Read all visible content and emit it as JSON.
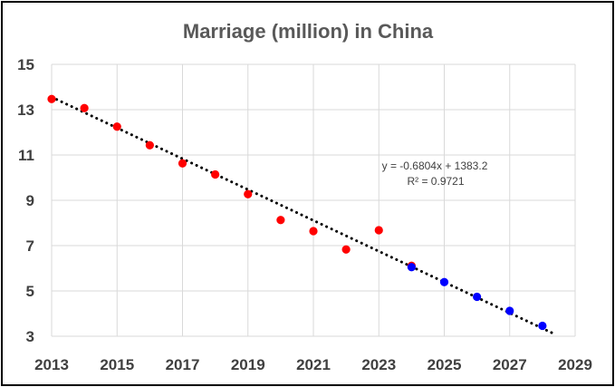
{
  "chart_data": {
    "type": "scatter",
    "title": "Marriage (million) in China",
    "xlabel": "",
    "ylabel": "",
    "xlim": [
      2013,
      2029
    ],
    "ylim": [
      3,
      15
    ],
    "xticks": [
      "2013",
      "2015",
      "2017",
      "2019",
      "2021",
      "2023",
      "2025",
      "2027",
      "2029"
    ],
    "yticks": [
      "15",
      "13",
      "11",
      "9",
      "7",
      "5",
      "3"
    ],
    "grid": true,
    "series": [
      {
        "color": "#ff0000",
        "x": [
          2013,
          2014,
          2015,
          2016,
          2017,
          2018,
          2019,
          2020,
          2021,
          2022,
          2023,
          2024
        ],
        "y": [
          13.47,
          13.07,
          12.25,
          11.43,
          10.63,
          10.14,
          9.27,
          8.13,
          7.64,
          6.83,
          7.68,
          6.11
        ]
      },
      {
        "color": "#0000ff",
        "x": [
          2024,
          2025,
          2026,
          2027,
          2028
        ],
        "y": [
          6.05,
          5.39,
          4.74,
          4.12,
          3.46
        ]
      }
    ],
    "trendline": {
      "style": "dotted",
      "color": "#000000",
      "x_range": [
        2013,
        2028.4
      ],
      "slope": -0.6804,
      "intercept": 1383.2,
      "equation": "y = -0.6804x + 1383.2",
      "r_squared": "R² = 0.9721"
    }
  }
}
